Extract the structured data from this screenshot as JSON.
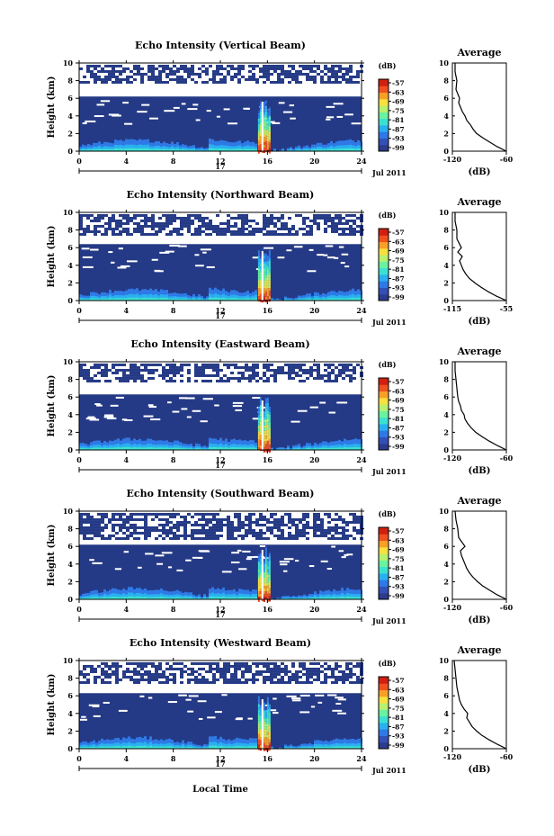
{
  "figure": {
    "x_axis_label": "Local Time",
    "day_label": "17",
    "month_label": "Jul 2011",
    "colorbar_unit": "(dB)",
    "colorbar_ticks": [
      "-57",
      "-63",
      "-69",
      "-75",
      "-81",
      "-87",
      "-93",
      "-99"
    ],
    "avg_title": "Average",
    "avg_xlabel": "(dB)",
    "y_label": "Height (km)",
    "x_ticks": [
      0,
      4,
      8,
      12,
      16,
      20,
      24
    ],
    "y_ticks": [
      0,
      2,
      4,
      6,
      8,
      10
    ]
  },
  "panels": [
    {
      "title": "Echo Intensity (Vertical Beam)",
      "avg_xticks": [
        "-120",
        "-60"
      ],
      "avg_xrange": [
        -120,
        -60
      ]
    },
    {
      "title": "Echo Intensity (Northward Beam)",
      "avg_xticks": [
        "-115",
        "-55"
      ],
      "avg_xrange": [
        -115,
        -55
      ]
    },
    {
      "title": "Echo Intensity (Eastward Beam)",
      "avg_xticks": [
        "-120",
        "-60"
      ],
      "avg_xrange": [
        -120,
        -60
      ]
    },
    {
      "title": "Echo Intensity (Southward Beam)",
      "avg_xticks": [
        "-120",
        "-60"
      ],
      "avg_xrange": [
        -120,
        -60
      ]
    },
    {
      "title": "Echo Intensity (Westward Beam)",
      "avg_xticks": [
        "-120",
        "-60"
      ],
      "avg_xrange": [
        -120,
        -60
      ]
    }
  ],
  "chart_data": [
    {
      "type": "heatmap",
      "title": "Echo Intensity (Vertical Beam)",
      "xlabel": "",
      "ylabel": "Height (km)",
      "xlim": [
        0,
        24
      ],
      "ylim": [
        0,
        10
      ],
      "zlim": [
        -99,
        -57
      ],
      "zunit": "dB",
      "cloud_top_km": 6.2,
      "upper_layer_km": [
        7.9,
        9.8
      ],
      "event_hours": [
        15.2,
        16.2
      ]
    },
    {
      "type": "line",
      "title": "Average",
      "xlabel": "(dB)",
      "xlim": [
        -120,
        -60
      ],
      "ylim": [
        0,
        10
      ],
      "x": [
        -60,
        -70,
        -78,
        -86,
        -93,
        -97,
        -100,
        -104,
        -106,
        -109,
        -111,
        -113,
        -112,
        -116,
        -115,
        -117,
        -117
      ],
      "y": [
        0,
        0.5,
        1,
        1.5,
        2,
        2.5,
        3,
        3.5,
        4,
        4.5,
        5,
        5.5,
        6,
        7,
        8,
        9,
        10
      ]
    },
    {
      "type": "heatmap",
      "title": "Echo Intensity (Northward Beam)",
      "xlabel": "",
      "ylabel": "Height (km)",
      "xlim": [
        0,
        24
      ],
      "ylim": [
        0,
        10
      ],
      "zlim": [
        -99,
        -57
      ],
      "zunit": "dB",
      "cloud_top_km": 6.4,
      "upper_layer_km": [
        7.5,
        9.8
      ],
      "event_hours": [
        15.2,
        16.2
      ]
    },
    {
      "type": "line",
      "title": "Average",
      "xlabel": "(dB)",
      "xlim": [
        -115,
        -55
      ],
      "ylim": [
        0,
        10
      ],
      "x": [
        -55,
        -66,
        -75,
        -83,
        -90,
        -96,
        -100,
        -103,
        -105,
        -107,
        -104,
        -109,
        -105,
        -110,
        -110,
        -112,
        -112
      ],
      "y": [
        0,
        0.5,
        1,
        1.5,
        2,
        2.5,
        3,
        3.5,
        4,
        4.5,
        5,
        5.5,
        6,
        7,
        8,
        9,
        10
      ]
    },
    {
      "type": "heatmap",
      "title": "Echo Intensity (Eastward Beam)",
      "xlabel": "",
      "ylabel": "Height (km)",
      "xlim": [
        0,
        24
      ],
      "ylim": [
        0,
        10
      ],
      "zlim": [
        -99,
        -57
      ],
      "zunit": "dB",
      "cloud_top_km": 6.3,
      "upper_layer_km": [
        7.8,
        9.8
      ],
      "event_hours": [
        15.2,
        16.2
      ]
    },
    {
      "type": "line",
      "title": "Average",
      "xlabel": "(dB)",
      "xlim": [
        -120,
        -60
      ],
      "ylim": [
        0,
        10
      ],
      "x": [
        -60,
        -70,
        -79,
        -87,
        -94,
        -99,
        -103,
        -106,
        -107,
        -110,
        -111,
        -113,
        -114,
        -115,
        -116,
        -117,
        -117
      ],
      "y": [
        0,
        0.5,
        1,
        1.5,
        2,
        2.5,
        3,
        3.5,
        4,
        4.5,
        5,
        5.5,
        6,
        7,
        8,
        9,
        10
      ]
    },
    {
      "type": "heatmap",
      "title": "Echo Intensity (Southward Beam)",
      "xlabel": "",
      "ylabel": "Height (km)",
      "xlim": [
        0,
        24
      ],
      "ylim": [
        0,
        10
      ],
      "zlim": [
        -99,
        -57
      ],
      "zunit": "dB",
      "cloud_top_km": 6.2,
      "upper_layer_km": [
        7.0,
        9.8
      ],
      "event_hours": [
        15.2,
        16.2
      ]
    },
    {
      "type": "line",
      "title": "Average",
      "xlabel": "(dB)",
      "xlim": [
        -120,
        -60
      ],
      "ylim": [
        0,
        10
      ],
      "x": [
        -60,
        -70,
        -78,
        -86,
        -92,
        -97,
        -101,
        -104,
        -106,
        -108,
        -110,
        -111,
        -106,
        -113,
        -114,
        -116,
        -117
      ],
      "y": [
        0,
        0.5,
        1,
        1.5,
        2,
        2.5,
        3,
        3.5,
        4,
        4.5,
        5,
        5.5,
        6,
        7,
        8,
        9,
        10
      ]
    },
    {
      "type": "heatmap",
      "title": "Echo Intensity (Westward Beam)",
      "xlabel": "",
      "ylabel": "Height (km)",
      "xlim": [
        0,
        24
      ],
      "ylim": [
        0,
        10
      ],
      "zlim": [
        -99,
        -57
      ],
      "zunit": "dB",
      "cloud_top_km": 6.3,
      "upper_layer_km": [
        7.6,
        9.8
      ],
      "event_hours": [
        15.2,
        16.2
      ]
    },
    {
      "type": "line",
      "title": "Average",
      "xlabel": "(dB)",
      "xlim": [
        -120,
        -60
      ],
      "ylim": [
        0,
        10
      ],
      "x": [
        -60,
        -70,
        -79,
        -87,
        -93,
        -98,
        -101,
        -104,
        -103,
        -107,
        -110,
        -112,
        -113,
        -115,
        -116,
        -117,
        -118
      ],
      "y": [
        0,
        0.5,
        1,
        1.5,
        2,
        2.5,
        3,
        3.5,
        4,
        4.5,
        5,
        5.5,
        6,
        7,
        8,
        9,
        10
      ]
    }
  ],
  "colors": {
    "background": "#253a86",
    "scale": [
      "#2b3b8d",
      "#3350b5",
      "#2f79e6",
      "#2ab0f0",
      "#3ce0d0",
      "#6af2a0",
      "#b8f070",
      "#f7e040",
      "#f7a028",
      "#ef5020",
      "#d02010"
    ]
  }
}
